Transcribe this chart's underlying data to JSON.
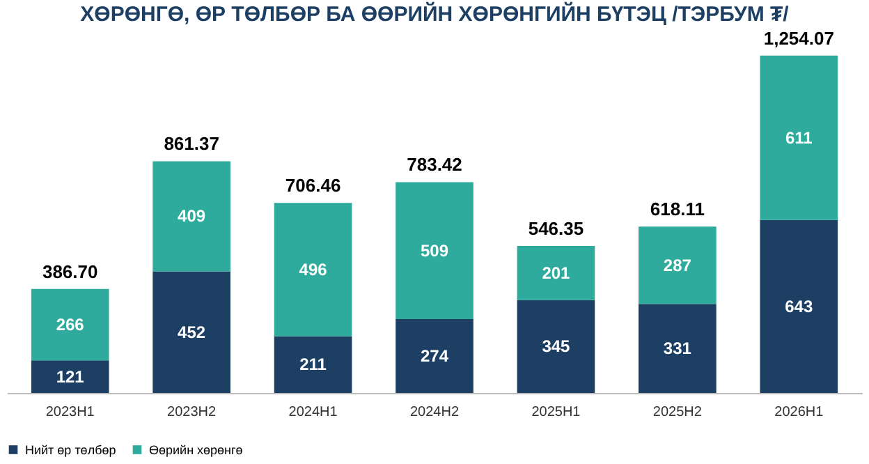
{
  "chart_data": {
    "type": "bar",
    "title": "ХӨРӨНГӨ, ӨР ТӨЛБӨР БА ӨӨРИЙН ХӨРӨНГИЙН БҮТЭЦ /ТЭРБУМ ₮/",
    "categories": [
      "2023H1",
      "2023H2",
      "2024H1",
      "2024H2",
      "2025H1",
      "2025H2",
      "2026H1"
    ],
    "series": [
      {
        "name": "Нийт өр төлбөр",
        "color": "#1c3f63",
        "values": [
          120.85,
          452.18,
          210.73,
          274.21,
          345.17,
          331.05,
          643.03
        ],
        "value_labels": [
          "121",
          "452",
          "211",
          "274",
          "345",
          "331",
          "643"
        ]
      },
      {
        "name": "Өөрийн хөрөнгө",
        "color": "#2eab9c",
        "values": [
          265.85,
          409.19,
          495.73,
          509.21,
          201.18,
          287.06,
          611.04
        ],
        "value_labels": [
          "266",
          "409",
          "496",
          "509",
          "201",
          "287",
          "611"
        ]
      }
    ],
    "stacked": true,
    "totals": [
      "386.70",
      "861.37",
      "706.46",
      "783.42",
      "546.35",
      "618.11",
      "1,254.07"
    ],
    "legend": "bottom",
    "grid": false,
    "tick_labels": "x"
  }
}
